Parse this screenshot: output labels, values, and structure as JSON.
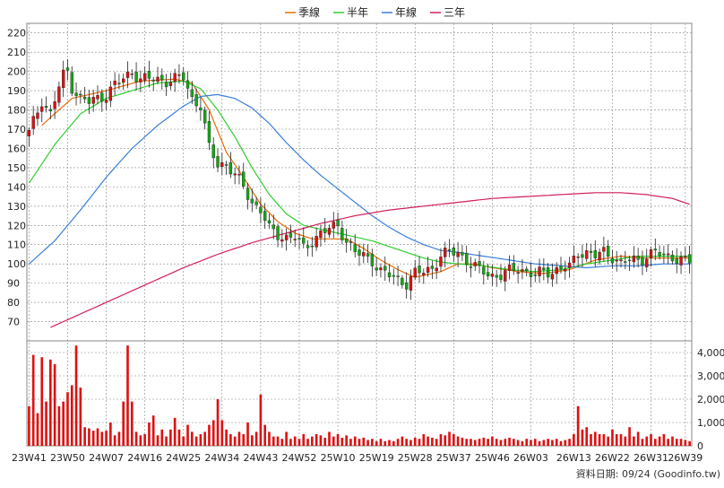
{
  "legend": [
    {
      "name": "季線",
      "color": "#e46c0a"
    },
    {
      "name": "半年",
      "color": "#2fcf2f"
    },
    {
      "name": "年線",
      "color": "#3b7fd9"
    },
    {
      "name": "三年",
      "color": "#d21f5a"
    }
  ],
  "footer": "資料日期: 09/24  (Goodinfo.tw)",
  "colors": {
    "up": "#dd1111",
    "down": "#11aa11",
    "volume": "#dd1111",
    "grid": "#888888",
    "frame": "#888888"
  },
  "chart_data": {
    "type": "candlestick",
    "x_ticks": [
      "23W41",
      "23W50",
      "24W07",
      "24W16",
      "24W25",
      "24W34",
      "24W43",
      "24W52",
      "25W10",
      "25W19",
      "25W28",
      "25W37",
      "25W46",
      "26W03",
      "26W13",
      "26W22",
      "26W31",
      "26W39"
    ],
    "x_tick_week_index": [
      0,
      9,
      18,
      27,
      36,
      45,
      54,
      63,
      72,
      81,
      90,
      99,
      108,
      117,
      127,
      136,
      145,
      153
    ],
    "price_axis": {
      "min": 60,
      "max": 225,
      "ticks": [
        70,
        80,
        90,
        100,
        110,
        120,
        130,
        140,
        150,
        160,
        170,
        180,
        190,
        200,
        210,
        220
      ]
    },
    "volume_axis": {
      "min": 0,
      "max": 4500,
      "ticks": [
        0,
        1000,
        2000,
        3000,
        4000
      ],
      "tick_labels": [
        "0",
        "1,000",
        "2,000",
        "3,000",
        "4,000"
      ]
    },
    "weeks": 155,
    "anchors_close": [
      [
        0,
        168
      ],
      [
        3,
        185
      ],
      [
        5,
        178
      ],
      [
        7,
        192
      ],
      [
        8,
        198
      ],
      [
        9,
        200
      ],
      [
        10,
        192
      ],
      [
        12,
        186
      ],
      [
        14,
        184
      ],
      [
        16,
        186
      ],
      [
        18,
        188
      ],
      [
        20,
        193
      ],
      [
        22,
        196
      ],
      [
        24,
        200
      ],
      [
        26,
        196
      ],
      [
        28,
        196
      ],
      [
        30,
        196
      ],
      [
        32,
        195
      ],
      [
        34,
        196
      ],
      [
        36,
        197
      ],
      [
        38,
        186
      ],
      [
        40,
        182
      ],
      [
        42,
        160
      ],
      [
        44,
        152
      ],
      [
        46,
        152
      ],
      [
        48,
        146
      ],
      [
        50,
        140
      ],
      [
        52,
        132
      ],
      [
        54,
        128
      ],
      [
        56,
        118
      ],
      [
        58,
        115
      ],
      [
        60,
        114
      ],
      [
        62,
        114
      ],
      [
        64,
        108
      ],
      [
        66,
        112
      ],
      [
        68,
        116
      ],
      [
        70,
        118
      ],
      [
        72,
        120
      ],
      [
        74,
        112
      ],
      [
        76,
        106
      ],
      [
        78,
        104
      ],
      [
        80,
        102
      ],
      [
        82,
        96
      ],
      [
        84,
        94
      ],
      [
        86,
        92
      ],
      [
        88,
        90
      ],
      [
        90,
        95
      ],
      [
        92,
        96
      ],
      [
        94,
        98
      ],
      [
        96,
        104
      ],
      [
        98,
        106
      ],
      [
        100,
        106
      ],
      [
        102,
        102
      ],
      [
        104,
        98
      ],
      [
        106,
        96
      ],
      [
        108,
        94
      ],
      [
        110,
        94
      ],
      [
        112,
        96
      ],
      [
        114,
        98
      ],
      [
        116,
        96
      ],
      [
        118,
        94
      ],
      [
        120,
        96
      ],
      [
        122,
        96
      ],
      [
        124,
        98
      ],
      [
        126,
        98
      ],
      [
        128,
        106
      ],
      [
        130,
        106
      ],
      [
        132,
        104
      ],
      [
        134,
        106
      ],
      [
        136,
        104
      ],
      [
        138,
        100
      ],
      [
        140,
        102
      ],
      [
        142,
        102
      ],
      [
        144,
        104
      ],
      [
        146,
        106
      ],
      [
        148,
        104
      ],
      [
        150,
        104
      ],
      [
        152,
        102
      ],
      [
        154,
        101
      ]
    ],
    "ma_series": [
      {
        "name": "季線",
        "start": 3,
        "points": [
          [
            3,
            172
          ],
          [
            10,
            186
          ],
          [
            18,
            190
          ],
          [
            26,
            195
          ],
          [
            34,
            196
          ],
          [
            38,
            194
          ],
          [
            42,
            180
          ],
          [
            46,
            158
          ],
          [
            50,
            145
          ],
          [
            54,
            131
          ],
          [
            58,
            122
          ],
          [
            62,
            116
          ],
          [
            66,
            113
          ],
          [
            70,
            113
          ],
          [
            74,
            113
          ],
          [
            78,
            108
          ],
          [
            82,
            102
          ],
          [
            86,
            97
          ],
          [
            90,
            93
          ],
          [
            96,
            96
          ],
          [
            100,
            100
          ],
          [
            104,
            100
          ],
          [
            108,
            98
          ],
          [
            114,
            96
          ],
          [
            120,
            95
          ],
          [
            126,
            97
          ],
          [
            132,
            102
          ],
          [
            138,
            104
          ],
          [
            144,
            103
          ],
          [
            150,
            103
          ],
          [
            154,
            103
          ]
        ]
      },
      {
        "name": "半年",
        "start": 0,
        "points": [
          [
            0,
            142
          ],
          [
            6,
            162
          ],
          [
            12,
            178
          ],
          [
            18,
            186
          ],
          [
            24,
            190
          ],
          [
            30,
            194
          ],
          [
            36,
            195
          ],
          [
            40,
            191
          ],
          [
            44,
            180
          ],
          [
            48,
            166
          ],
          [
            52,
            150
          ],
          [
            56,
            136
          ],
          [
            60,
            126
          ],
          [
            64,
            120
          ],
          [
            68,
            118
          ],
          [
            72,
            116
          ],
          [
            76,
            114
          ],
          [
            80,
            112
          ],
          [
            84,
            109
          ],
          [
            88,
            106
          ],
          [
            92,
            103
          ],
          [
            96,
            101
          ],
          [
            100,
            100
          ],
          [
            106,
            99
          ],
          [
            112,
            97
          ],
          [
            118,
            96
          ],
          [
            124,
            97
          ],
          [
            130,
            100
          ],
          [
            136,
            102
          ],
          [
            142,
            104
          ],
          [
            148,
            104
          ],
          [
            154,
            104
          ]
        ]
      },
      {
        "name": "年線",
        "start": 0,
        "points": [
          [
            0,
            100
          ],
          [
            6,
            112
          ],
          [
            12,
            128
          ],
          [
            18,
            145
          ],
          [
            24,
            160
          ],
          [
            30,
            172
          ],
          [
            36,
            182
          ],
          [
            40,
            187
          ],
          [
            44,
            188
          ],
          [
            48,
            186
          ],
          [
            52,
            181
          ],
          [
            56,
            173
          ],
          [
            60,
            163
          ],
          [
            64,
            154
          ],
          [
            68,
            146
          ],
          [
            72,
            139
          ],
          [
            76,
            132
          ],
          [
            80,
            125
          ],
          [
            84,
            119
          ],
          [
            88,
            114
          ],
          [
            92,
            110
          ],
          [
            96,
            107
          ],
          [
            100,
            106
          ],
          [
            106,
            104
          ],
          [
            112,
            102
          ],
          [
            118,
            100
          ],
          [
            124,
            99
          ],
          [
            130,
            98
          ],
          [
            136,
            99
          ],
          [
            142,
            99
          ],
          [
            148,
            100
          ],
          [
            154,
            100
          ]
        ]
      },
      {
        "name": "三年",
        "start": 5,
        "points": [
          [
            5,
            67
          ],
          [
            12,
            74
          ],
          [
            20,
            82
          ],
          [
            28,
            90
          ],
          [
            36,
            98
          ],
          [
            44,
            105
          ],
          [
            52,
            111
          ],
          [
            60,
            116
          ],
          [
            68,
            121
          ],
          [
            76,
            125
          ],
          [
            84,
            128
          ],
          [
            92,
            130
          ],
          [
            100,
            132
          ],
          [
            108,
            134
          ],
          [
            116,
            135
          ],
          [
            124,
            136
          ],
          [
            132,
            137
          ],
          [
            138,
            137
          ],
          [
            144,
            136
          ],
          [
            150,
            134
          ],
          [
            154,
            131
          ]
        ]
      }
    ],
    "volume_anchors": [
      [
        0,
        1700
      ],
      [
        1,
        3900
      ],
      [
        2,
        1400
      ],
      [
        3,
        3800
      ],
      [
        4,
        1900
      ],
      [
        5,
        3700
      ],
      [
        6,
        3500
      ],
      [
        7,
        1700
      ],
      [
        8,
        1900
      ],
      [
        9,
        2300
      ],
      [
        10,
        2600
      ],
      [
        11,
        4300
      ],
      [
        12,
        2500
      ],
      [
        13,
        800
      ],
      [
        14,
        750
      ],
      [
        15,
        650
      ],
      [
        16,
        750
      ],
      [
        17,
        600
      ],
      [
        18,
        650
      ],
      [
        19,
        1000
      ],
      [
        20,
        450
      ],
      [
        21,
        600
      ],
      [
        22,
        1900
      ],
      [
        23,
        4300
      ],
      [
        24,
        1900
      ],
      [
        25,
        600
      ],
      [
        26,
        450
      ],
      [
        27,
        500
      ],
      [
        28,
        1000
      ],
      [
        29,
        1300
      ],
      [
        30,
        450
      ],
      [
        31,
        700
      ],
      [
        32,
        400
      ],
      [
        33,
        700
      ],
      [
        34,
        1200
      ],
      [
        35,
        700
      ],
      [
        36,
        400
      ],
      [
        37,
        900
      ],
      [
        38,
        600
      ],
      [
        39,
        400
      ],
      [
        40,
        500
      ],
      [
        41,
        600
      ],
      [
        42,
        900
      ],
      [
        43,
        1100
      ],
      [
        44,
        2000
      ],
      [
        45,
        1100
      ],
      [
        46,
        700
      ],
      [
        47,
        500
      ],
      [
        48,
        400
      ],
      [
        49,
        600
      ],
      [
        50,
        500
      ],
      [
        51,
        1000
      ],
      [
        52,
        450
      ],
      [
        53,
        600
      ],
      [
        54,
        2200
      ],
      [
        55,
        900
      ],
      [
        56,
        600
      ],
      [
        57,
        400
      ],
      [
        58,
        400
      ],
      [
        59,
        300
      ],
      [
        60,
        600
      ],
      [
        61,
        300
      ],
      [
        62,
        400
      ],
      [
        63,
        300
      ],
      [
        64,
        500
      ],
      [
        65,
        300
      ],
      [
        66,
        400
      ],
      [
        67,
        500
      ],
      [
        68,
        450
      ],
      [
        69,
        350
      ],
      [
        70,
        600
      ],
      [
        71,
        400
      ],
      [
        72,
        500
      ],
      [
        73,
        350
      ],
      [
        74,
        450
      ],
      [
        75,
        300
      ],
      [
        76,
        400
      ],
      [
        77,
        300
      ],
      [
        78,
        350
      ],
      [
        79,
        250
      ],
      [
        80,
        300
      ],
      [
        81,
        200
      ],
      [
        82,
        300
      ],
      [
        83,
        200
      ],
      [
        84,
        250
      ],
      [
        85,
        200
      ],
      [
        86,
        300
      ],
      [
        87,
        400
      ],
      [
        88,
        300
      ],
      [
        89,
        250
      ],
      [
        90,
        350
      ],
      [
        91,
        300
      ],
      [
        92,
        500
      ],
      [
        93,
        400
      ],
      [
        94,
        350
      ],
      [
        95,
        300
      ],
      [
        96,
        500
      ],
      [
        97,
        450
      ],
      [
        98,
        600
      ],
      [
        99,
        500
      ],
      [
        100,
        400
      ],
      [
        101,
        350
      ],
      [
        102,
        300
      ],
      [
        103,
        300
      ],
      [
        104,
        250
      ],
      [
        105,
        300
      ],
      [
        106,
        350
      ],
      [
        107,
        300
      ],
      [
        108,
        400
      ],
      [
        109,
        300
      ],
      [
        110,
        250
      ],
      [
        111,
        300
      ],
      [
        112,
        350
      ],
      [
        113,
        300
      ],
      [
        114,
        250
      ],
      [
        115,
        200
      ],
      [
        116,
        300
      ],
      [
        117,
        250
      ],
      [
        118,
        300
      ],
      [
        119,
        200
      ],
      [
        120,
        250
      ],
      [
        121,
        300
      ],
      [
        122,
        250
      ],
      [
        123,
        300
      ],
      [
        124,
        200
      ],
      [
        125,
        250
      ],
      [
        126,
        300
      ],
      [
        127,
        500
      ],
      [
        128,
        1700
      ],
      [
        129,
        700
      ],
      [
        130,
        800
      ],
      [
        131,
        500
      ],
      [
        132,
        600
      ],
      [
        133,
        500
      ],
      [
        134,
        500
      ],
      [
        135,
        400
      ],
      [
        136,
        700
      ],
      [
        137,
        500
      ],
      [
        138,
        500
      ],
      [
        139,
        400
      ],
      [
        140,
        800
      ],
      [
        141,
        400
      ],
      [
        142,
        600
      ],
      [
        143,
        300
      ],
      [
        144,
        400
      ],
      [
        145,
        500
      ],
      [
        146,
        300
      ],
      [
        147,
        400
      ],
      [
        148,
        500
      ],
      [
        149,
        300
      ],
      [
        150,
        400
      ],
      [
        151,
        300
      ],
      [
        152,
        300
      ],
      [
        153,
        250
      ],
      [
        154,
        200
      ]
    ]
  }
}
